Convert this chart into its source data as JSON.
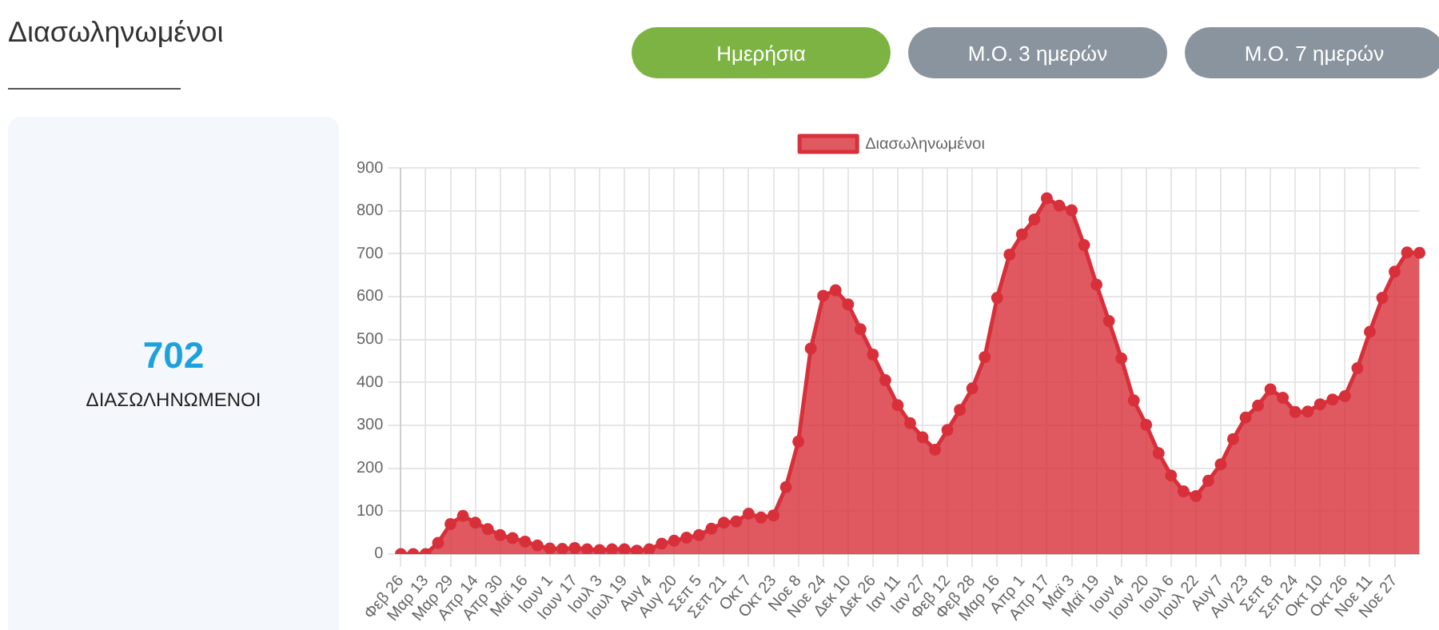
{
  "chart_data": {
    "type": "area",
    "title": "Διασωληνωμένοι",
    "annotations": [
      "Ημερήσια",
      "Μ.Ο. 3 ημερών",
      "Μ.Ο. 7 ημερών",
      "702",
      "ΔΙΑΣΩΛΗΝΩΜΕΝΟΙ"
    ],
    "categories": [
      "Φεβ 26",
      null,
      "Μαρ 13",
      null,
      "Μαρ 29",
      null,
      "Απρ 14",
      null,
      "Απρ 30",
      null,
      "Μαϊ 16",
      null,
      "Ιουν 1",
      null,
      "Ιουν 17",
      null,
      "Ιουλ 3",
      null,
      "Ιουλ 19",
      null,
      "Αυγ 4",
      null,
      "Αυγ 20",
      null,
      "Σεπ 5",
      null,
      "Σεπ 21",
      null,
      "Οκτ 7",
      null,
      "Οκτ 23",
      null,
      "Νοε 8",
      null,
      "Νοε 24",
      null,
      "Δεκ 10",
      null,
      "Δεκ 26",
      null,
      "Ιαν 11",
      null,
      "Ιαν 27",
      null,
      "Φεβ 12",
      null,
      "Φεβ 28",
      null,
      "Μαρ 16",
      null,
      "Απρ 1",
      null,
      "Απρ 17",
      null,
      "Μαϊ 3",
      null,
      "Μαϊ 19",
      null,
      "Ιουν 4",
      null,
      "Ιουν 20",
      null,
      "Ιουλ 6",
      null,
      "Ιουλ 22",
      null,
      "Αυγ 7",
      null,
      "Αυγ 23",
      null,
      "Σεπ 8",
      null,
      "Σεπ 24",
      null,
      "Οκτ 10",
      null,
      "Οκτ 26",
      null,
      "Νοε 11",
      null,
      "Νοε 27",
      null,
      null
    ],
    "series": [
      {
        "name": "Διασωληνωμένοι",
        "color": "#d8303a",
        "values": [
          0,
          0,
          0,
          26,
          70,
          89,
          73,
          58,
          44,
          37,
          29,
          20,
          13,
          12,
          14,
          11,
          9,
          11,
          11,
          8,
          11,
          24,
          31,
          38,
          44,
          59,
          73,
          76,
          94,
          85,
          90,
          156,
          262,
          479,
          602,
          615,
          582,
          524,
          465,
          405,
          347,
          305,
          272,
          243,
          289,
          336,
          386,
          459,
          597,
          698,
          745,
          780,
          829,
          812,
          801,
          720,
          628,
          543,
          456,
          358,
          301,
          235,
          183,
          146,
          135,
          171,
          209,
          268,
          318,
          346,
          384,
          364,
          331,
          332,
          349,
          360,
          368,
          433,
          518,
          597,
          658,
          703,
          702
        ]
      }
    ],
    "ylim": [
      0,
      900
    ],
    "yticks": [
      0,
      100,
      200,
      300,
      400,
      500,
      600,
      700,
      800,
      900
    ],
    "grid": true,
    "legend": "top",
    "marker": "circle",
    "line_style": "solid"
  }
}
